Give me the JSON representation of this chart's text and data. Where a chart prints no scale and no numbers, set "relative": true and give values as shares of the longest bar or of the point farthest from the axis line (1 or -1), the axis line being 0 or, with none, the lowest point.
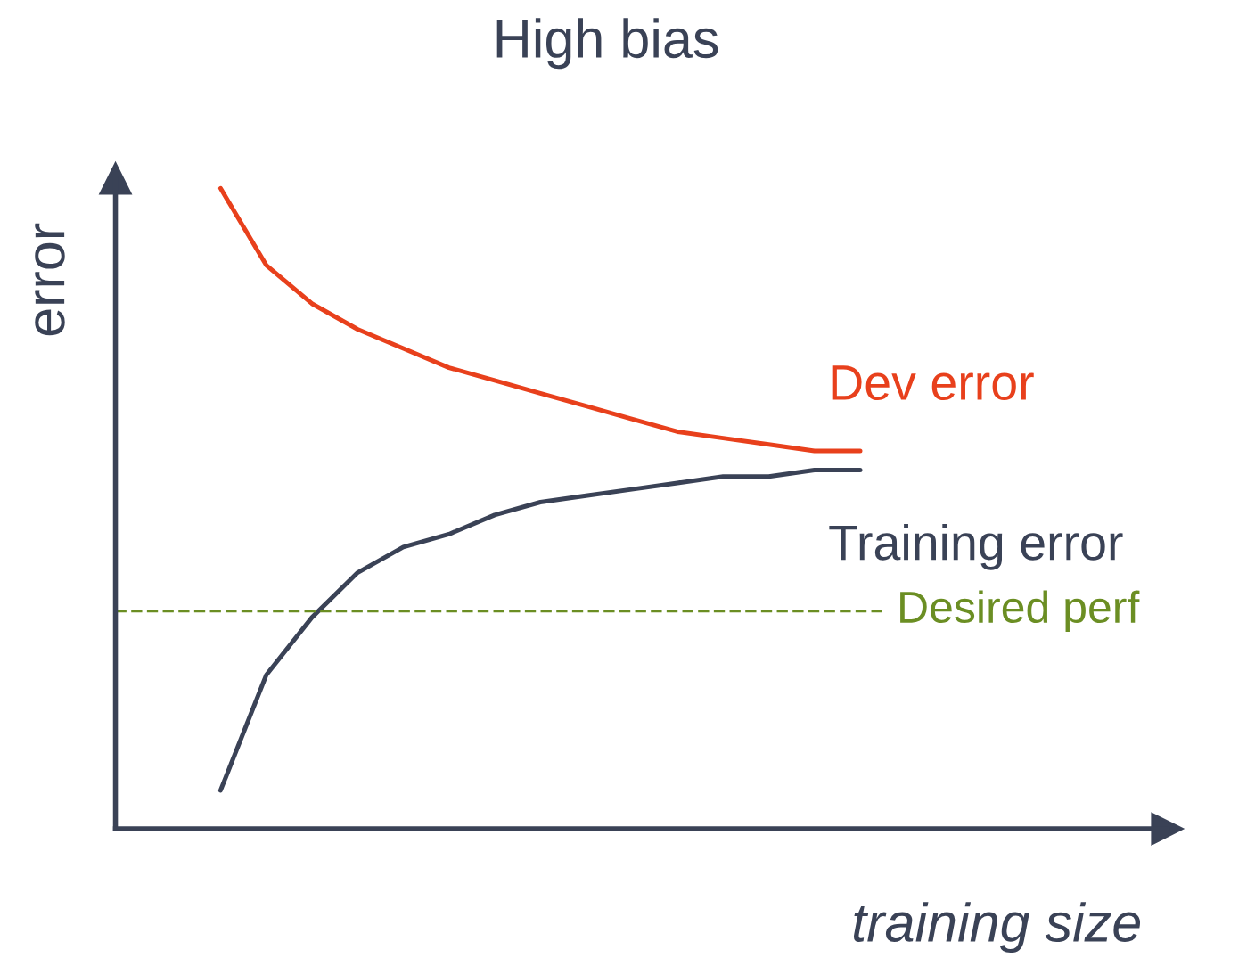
{
  "chart_data": {
    "type": "line",
    "title": "High bias",
    "xlabel": "training size",
    "ylabel": "error",
    "relative": true,
    "categories": [
      null,
      null,
      null,
      null,
      null,
      null,
      null,
      null,
      null,
      null,
      null,
      null,
      null,
      null,
      null
    ],
    "series": [
      {
        "name": "Dev error",
        "color": "#e8401c",
        "values": [
          1.0,
          0.88,
          0.82,
          0.78,
          0.75,
          0.72,
          0.7,
          0.68,
          0.66,
          0.64,
          0.62,
          0.61,
          0.6,
          0.59,
          0.59
        ]
      },
      {
        "name": "Training error",
        "color": "#3a4256",
        "values": [
          0.06,
          0.24,
          0.33,
          0.4,
          0.44,
          0.46,
          0.49,
          0.51,
          0.52,
          0.53,
          0.54,
          0.55,
          0.55,
          0.56,
          0.56
        ]
      }
    ],
    "ref_lines": [
      {
        "axis": "y",
        "value": 0.34,
        "label": "Desired perf",
        "color": "#6b8e23",
        "line_style": "dashed"
      }
    ],
    "legend": false,
    "marker": "none",
    "line_style": "solid"
  }
}
